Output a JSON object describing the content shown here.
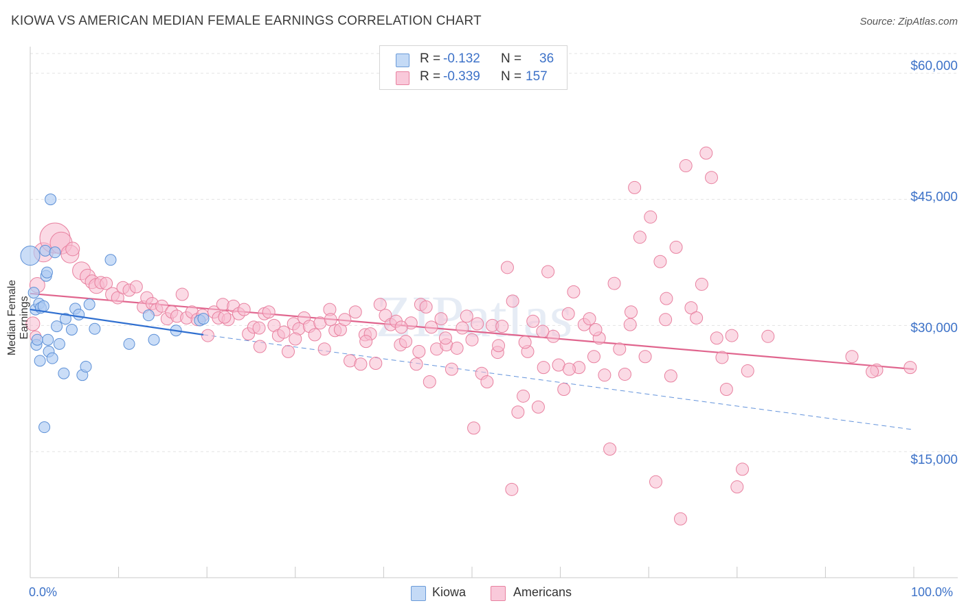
{
  "title": "KIOWA VS AMERICAN MEDIAN FEMALE EARNINGS CORRELATION CHART",
  "source": "Source: ZipAtlas.com",
  "watermark": "ZIPatlas",
  "colors": {
    "kiowa_fill": "#aecbf2",
    "kiowa_stroke": "#5b8fd6",
    "kiowa_line": "#2f6fd0",
    "americans_fill": "#f7bcd0",
    "americans_stroke": "#e8809f",
    "americans_line": "#e0648d",
    "tick_label": "#3d72c8"
  },
  "legend": {
    "kiowa": {
      "r_label": "R =",
      "r_value": "-0.132",
      "n_label": "N =",
      "n_value": "36"
    },
    "americans": {
      "r_label": "R =",
      "r_value": "-0.339",
      "n_label": "N =",
      "n_value": "157"
    }
  },
  "bottom_legend": {
    "kiowa": "Kiowa",
    "americans": "Americans"
  },
  "chart_data": {
    "type": "scatter",
    "title": "KIOWA VS AMERICAN MEDIAN FEMALE EARNINGS CORRELATION CHART",
    "xlabel": "",
    "ylabel": "Median Female Earnings",
    "xlim": [
      0,
      100
    ],
    "ylim": [
      0,
      63000
    ],
    "x_tick_labels": [
      "0.0%",
      "100.0%"
    ],
    "y_ticks": [
      15000,
      30000,
      45000,
      60000
    ],
    "y_tick_labels": [
      "$15,000",
      "$30,000",
      "$45,000",
      "$60,000"
    ],
    "grid": true,
    "series": [
      {
        "name": "Kiowa",
        "points": [
          [
            0.0,
            38300,
            14
          ],
          [
            0.4,
            33900,
            8
          ],
          [
            0.6,
            31900,
            8
          ],
          [
            0.7,
            27700,
            8
          ],
          [
            0.8,
            28300,
            8
          ],
          [
            1.0,
            32600,
            8
          ],
          [
            1.1,
            25800,
            8
          ],
          [
            1.2,
            32100,
            8
          ],
          [
            1.5,
            32300,
            8
          ],
          [
            1.6,
            17900,
            8
          ],
          [
            1.7,
            38900,
            8
          ],
          [
            1.8,
            35900,
            8
          ],
          [
            1.9,
            36300,
            8
          ],
          [
            2.0,
            28300,
            8
          ],
          [
            2.1,
            26900,
            8
          ],
          [
            2.3,
            45000,
            8
          ],
          [
            2.5,
            26100,
            8
          ],
          [
            2.8,
            38700,
            8
          ],
          [
            3.0,
            29900,
            8
          ],
          [
            3.3,
            27800,
            8
          ],
          [
            3.8,
            24300,
            8
          ],
          [
            4.0,
            30800,
            8
          ],
          [
            4.7,
            29500,
            8
          ],
          [
            5.1,
            32000,
            8
          ],
          [
            5.5,
            31300,
            8
          ],
          [
            5.9,
            24100,
            8
          ],
          [
            6.3,
            25100,
            8
          ],
          [
            6.7,
            32500,
            8
          ],
          [
            7.3,
            29600,
            8
          ],
          [
            9.1,
            37800,
            8
          ],
          [
            11.2,
            27800,
            8
          ],
          [
            13.4,
            31200,
            8
          ],
          [
            14.0,
            28300,
            8
          ],
          [
            16.5,
            29400,
            8
          ],
          [
            19.2,
            30600,
            8
          ],
          [
            19.6,
            30800,
            8
          ]
        ]
      },
      {
        "name": "Americans",
        "points": [
          [
            0.3,
            30200,
            10
          ],
          [
            0.8,
            34800,
            11
          ],
          [
            0.6,
            28700,
            8
          ],
          [
            1.5,
            38700,
            14
          ],
          [
            2.8,
            40400,
            22
          ],
          [
            3.5,
            39800,
            16
          ],
          [
            4.5,
            38500,
            13
          ],
          [
            4.8,
            39100,
            10
          ],
          [
            5.8,
            36500,
            13
          ],
          [
            6.5,
            35800,
            11
          ],
          [
            7.0,
            35200,
            10
          ],
          [
            7.5,
            34700,
            11
          ],
          [
            8.0,
            35100,
            9
          ],
          [
            8.6,
            35000,
            9
          ],
          [
            9.3,
            33700,
            10
          ],
          [
            9.9,
            33300,
            9
          ],
          [
            10.5,
            34500,
            9
          ],
          [
            11.2,
            34200,
            9
          ],
          [
            12.0,
            34600,
            9
          ],
          [
            12.8,
            32200,
            9
          ],
          [
            13.2,
            33300,
            9
          ],
          [
            13.8,
            32600,
            9
          ],
          [
            14.3,
            31900,
            9
          ],
          [
            14.9,
            32300,
            9
          ],
          [
            15.5,
            30800,
            9
          ],
          [
            16.0,
            31600,
            9
          ],
          [
            16.6,
            31100,
            9
          ],
          [
            17.2,
            33700,
            9
          ],
          [
            17.7,
            30900,
            9
          ],
          [
            18.3,
            31600,
            9
          ],
          [
            18.9,
            30700,
            9
          ],
          [
            19.5,
            31200,
            9
          ],
          [
            20.1,
            28800,
            9
          ],
          [
            20.8,
            31600,
            9
          ],
          [
            21.3,
            30900,
            9
          ],
          [
            21.8,
            32500,
            9
          ],
          [
            22.4,
            30700,
            9
          ],
          [
            23.0,
            32300,
            9
          ],
          [
            23.6,
            31400,
            9
          ],
          [
            24.2,
            31900,
            9
          ],
          [
            24.7,
            29000,
            9
          ],
          [
            25.3,
            29800,
            9
          ],
          [
            25.9,
            29700,
            9
          ],
          [
            26.5,
            31400,
            9
          ],
          [
            27.0,
            31600,
            9
          ],
          [
            27.6,
            30000,
            9
          ],
          [
            28.1,
            28800,
            9
          ],
          [
            28.7,
            29200,
            9
          ],
          [
            29.2,
            26900,
            9
          ],
          [
            29.8,
            30200,
            9
          ],
          [
            30.4,
            29600,
            9
          ],
          [
            31.0,
            30900,
            9
          ],
          [
            31.6,
            29900,
            9
          ],
          [
            32.2,
            28900,
            9
          ],
          [
            32.8,
            30300,
            9
          ],
          [
            33.3,
            27200,
            9
          ],
          [
            33.9,
            31900,
            9
          ],
          [
            34.5,
            29400,
            9
          ],
          [
            35.1,
            29500,
            9
          ],
          [
            35.6,
            30700,
            9
          ],
          [
            36.2,
            25800,
            9
          ],
          [
            36.8,
            31600,
            9
          ],
          [
            37.4,
            25400,
            9
          ],
          [
            37.9,
            28900,
            9
          ],
          [
            38.5,
            29000,
            9
          ],
          [
            39.1,
            25500,
            9
          ],
          [
            39.6,
            32500,
            9
          ],
          [
            40.2,
            31200,
            9
          ],
          [
            40.8,
            30100,
            9
          ],
          [
            41.4,
            30500,
            9
          ],
          [
            41.9,
            27700,
            9
          ],
          [
            42.5,
            28100,
            9
          ],
          [
            43.1,
            30300,
            9
          ],
          [
            43.7,
            25400,
            9
          ],
          [
            44.2,
            32500,
            9
          ],
          [
            44.8,
            32200,
            9
          ],
          [
            45.4,
            29800,
            9
          ],
          [
            46.0,
            27200,
            9
          ],
          [
            46.5,
            30800,
            9
          ],
          [
            47.1,
            27700,
            9
          ],
          [
            47.7,
            24800,
            9
          ],
          [
            48.3,
            27300,
            9
          ],
          [
            48.9,
            29700,
            9
          ],
          [
            49.4,
            31100,
            9
          ],
          [
            50.0,
            28300,
            9
          ],
          [
            50.6,
            30200,
            9
          ],
          [
            51.1,
            24300,
            9
          ],
          [
            51.7,
            23300,
            9
          ],
          [
            52.3,
            30000,
            9
          ],
          [
            52.9,
            26800,
            9
          ],
          [
            53.4,
            29900,
            9
          ],
          [
            54.0,
            36900,
            9
          ],
          [
            54.6,
            32900,
            9
          ],
          [
            55.2,
            19700,
            9
          ],
          [
            55.8,
            21600,
            9
          ],
          [
            56.3,
            26900,
            9
          ],
          [
            56.9,
            30500,
            9
          ],
          [
            57.5,
            20300,
            9
          ],
          [
            58.1,
            25000,
            9
          ],
          [
            58.6,
            36400,
            9
          ],
          [
            59.2,
            28700,
            9
          ],
          [
            59.8,
            25300,
            9
          ],
          [
            60.4,
            22400,
            9
          ],
          [
            60.9,
            31400,
            9
          ],
          [
            61.5,
            34000,
            9
          ],
          [
            62.1,
            25000,
            9
          ],
          [
            62.7,
            30100,
            9
          ],
          [
            63.3,
            30800,
            9
          ],
          [
            63.8,
            26300,
            9
          ],
          [
            64.4,
            28500,
            9
          ],
          [
            65.0,
            24100,
            9
          ],
          [
            65.6,
            15300,
            9
          ],
          [
            66.1,
            35000,
            9
          ],
          [
            66.7,
            27200,
            9
          ],
          [
            67.3,
            24200,
            9
          ],
          [
            67.9,
            30100,
            9
          ],
          [
            68.4,
            46400,
            9
          ],
          [
            69.0,
            40500,
            9
          ],
          [
            69.6,
            26300,
            9
          ],
          [
            70.2,
            42900,
            9
          ],
          [
            70.8,
            11400,
            9
          ],
          [
            71.3,
            37600,
            9
          ],
          [
            71.9,
            30700,
            9
          ],
          [
            72.5,
            24000,
            9
          ],
          [
            73.1,
            39300,
            9
          ],
          [
            73.6,
            7000,
            9
          ],
          [
            74.2,
            49000,
            9
          ],
          [
            74.8,
            32100,
            9
          ],
          [
            75.4,
            30900,
            9
          ],
          [
            76.0,
            34900,
            9
          ],
          [
            76.5,
            50500,
            9
          ],
          [
            77.1,
            47600,
            9
          ],
          [
            77.7,
            28500,
            9
          ],
          [
            78.3,
            26200,
            9
          ],
          [
            78.8,
            22400,
            9
          ],
          [
            79.4,
            28800,
            9
          ],
          [
            80.0,
            10800,
            9
          ],
          [
            80.6,
            12900,
            9
          ],
          [
            81.2,
            24600,
            9
          ],
          [
            54.5,
            10500,
            9
          ],
          [
            50.2,
            17800,
            9
          ],
          [
            56.0,
            28000,
            9
          ],
          [
            45.2,
            23300,
            9
          ],
          [
            44.0,
            26900,
            9
          ],
          [
            61.0,
            24800,
            9
          ],
          [
            64.0,
            29500,
            9
          ],
          [
            68.0,
            31600,
            9
          ],
          [
            72.0,
            33200,
            9
          ],
          [
            58.0,
            29300,
            9
          ],
          [
            53.0,
            27600,
            9
          ],
          [
            47.0,
            28500,
            9
          ],
          [
            42.0,
            29800,
            9
          ],
          [
            38.0,
            28100,
            9
          ],
          [
            34.0,
            30700,
            9
          ],
          [
            30.0,
            28400,
            9
          ],
          [
            26.0,
            27500,
            9
          ],
          [
            22.0,
            31000,
            9
          ],
          [
            95.8,
            24700,
            9
          ],
          [
            99.6,
            25000,
            9
          ],
          [
            93.0,
            26300,
            9
          ],
          [
            95.3,
            24500,
            9
          ],
          [
            83.5,
            28700,
            9
          ]
        ]
      }
    ],
    "trendlines": [
      {
        "name": "Kiowa",
        "solid_from": [
          0,
          31900
        ],
        "solid_to": [
          19.6,
          28900
        ],
        "dashed_to": [
          100,
          17600
        ]
      },
      {
        "name": "Americans",
        "from": [
          0,
          33800
        ],
        "to": [
          100,
          24800
        ]
      }
    ]
  }
}
